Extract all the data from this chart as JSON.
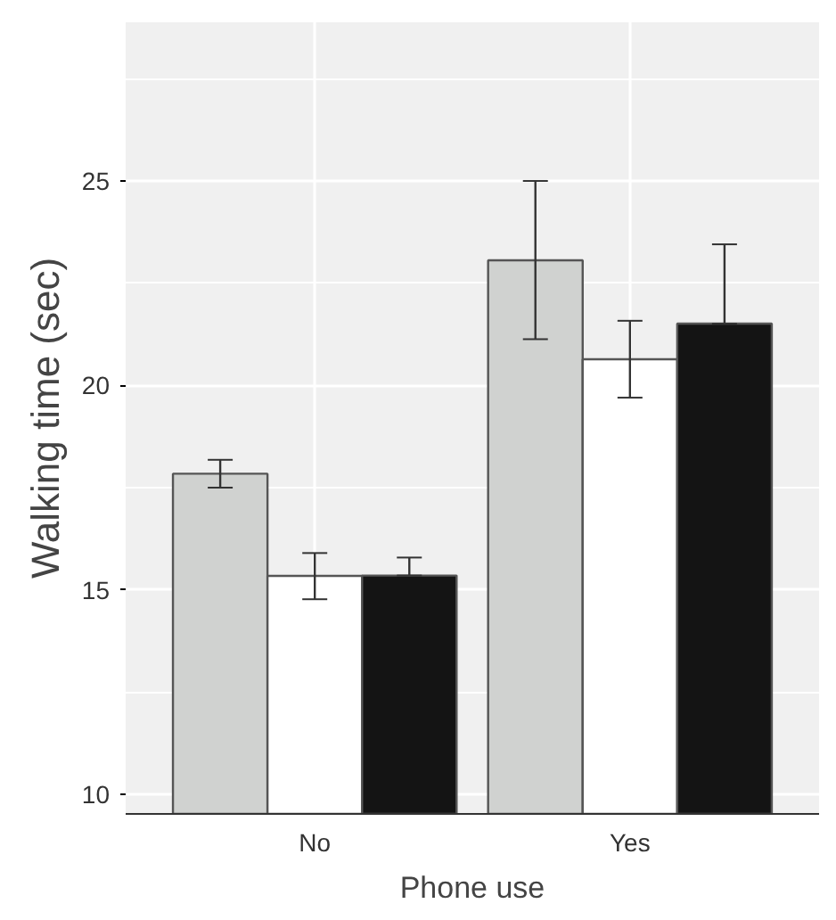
{
  "chart_data": {
    "type": "bar",
    "xlabel": "Phone use",
    "ylabel": "Walking time (sec)",
    "categories": [
      "No",
      "Yes"
    ],
    "series": [
      {
        "color": "#d0d2d0",
        "values": [
          17.84,
          23.06
        ],
        "errors": [
          [
            17.5,
            18.18
          ],
          [
            21.13,
            25.0
          ]
        ]
      },
      {
        "color": "#ffffff",
        "values": [
          15.34,
          20.64
        ],
        "errors": [
          [
            14.77,
            15.9
          ],
          [
            19.7,
            21.58
          ]
        ]
      },
      {
        "color": "#141414",
        "values": [
          15.35,
          21.51
        ],
        "errors": [
          [
            15.35,
            15.79
          ],
          [
            21.51,
            23.45
          ]
        ]
      }
    ],
    "ylim": [
      9.52,
      28.88
    ],
    "yticks": [
      10,
      15,
      20,
      25
    ],
    "grid": true
  }
}
